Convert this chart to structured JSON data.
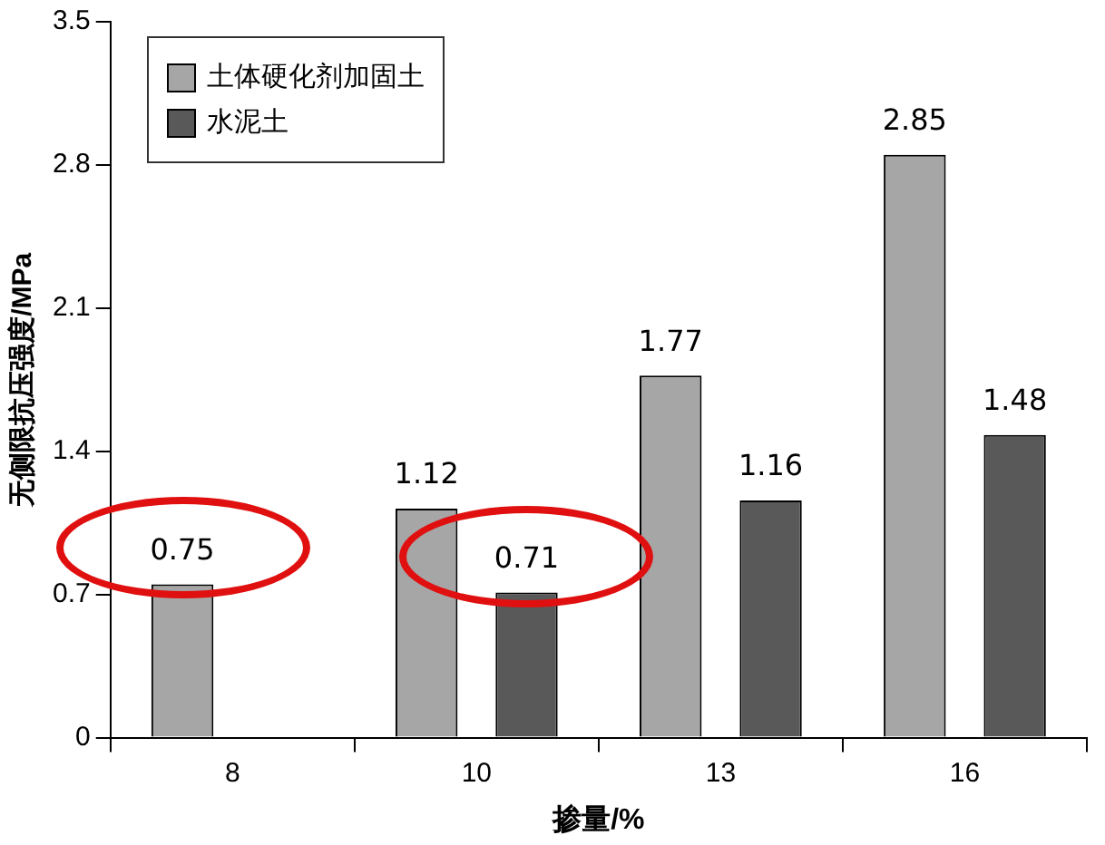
{
  "chart_data": {
    "type": "bar",
    "categories": [
      "8",
      "10",
      "13",
      "16"
    ],
    "series": [
      {
        "name": "土体硬化剂加固土",
        "color": "#a6a6a6",
        "values": [
          0.75,
          1.12,
          1.77,
          2.85
        ]
      },
      {
        "name": "水泥土",
        "color": "#595959",
        "values": [
          null,
          0.71,
          1.16,
          1.48
        ]
      }
    ],
    "xlabel": "掺量/%",
    "ylabel": "无侧限抗压强度/MPa",
    "ylim": [
      0,
      3.5
    ],
    "yticks": [
      0,
      0.7,
      1.4,
      2.1,
      2.8,
      3.5
    ],
    "grid": false,
    "legend": "top left",
    "data_labels": true
  }
}
